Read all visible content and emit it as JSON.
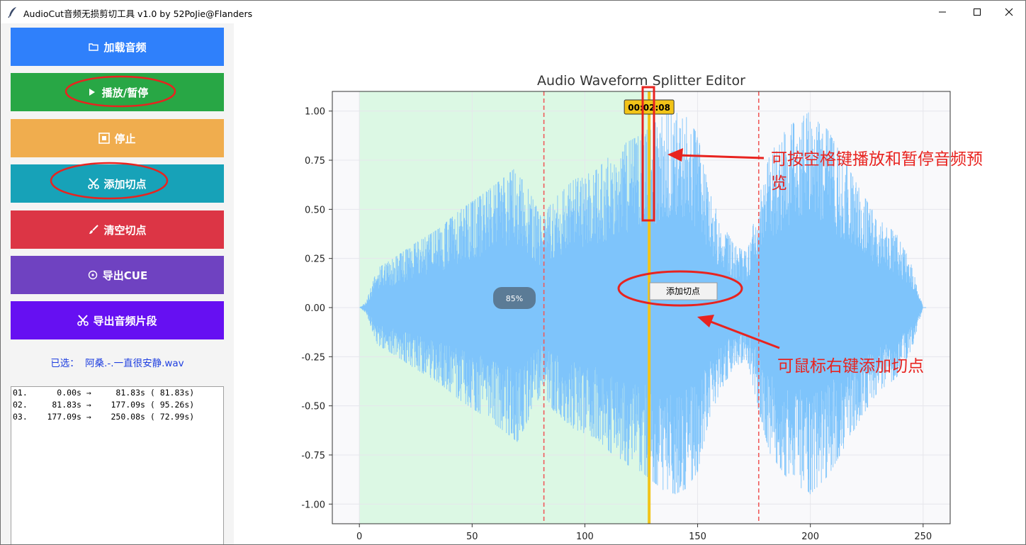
{
  "window": {
    "title": "AudioCut音频无损剪切工具 v1.0 by 52PoJie@Flanders"
  },
  "sidebar": {
    "buttons": [
      {
        "label": "加载音频",
        "icon": "folder-icon",
        "color": "#2f80fb"
      },
      {
        "label": "播放/暂停",
        "icon": "play-icon",
        "color": "#28a745"
      },
      {
        "label": "停止",
        "icon": "stop-icon",
        "color": "#f0ad4e"
      },
      {
        "label": "添加切点",
        "icon": "scissors-icon",
        "color": "#17a2b8"
      },
      {
        "label": "清空切点",
        "icon": "brush-icon",
        "color": "#dc3545"
      },
      {
        "label": "导出CUE",
        "icon": "disc-icon",
        "color": "#6f42c1"
      },
      {
        "label": "导出音频片段",
        "icon": "scissors-icon",
        "color": "#6610f2"
      }
    ],
    "selected_label": "已选：",
    "selected_file": "阿桑.-.一直很安静.wav",
    "segments": [
      "01.      0.00s →     81.83s ( 81.83s)",
      "02.     81.83s →    177.09s ( 95.26s)",
      "03.    177.09s →    250.08s ( 72.99s)"
    ]
  },
  "chart_data": {
    "type": "line",
    "title": "Audio Waveform Splitter Editor",
    "xlim": [
      -12,
      262
    ],
    "ylim": [
      -1.1,
      1.1
    ],
    "xticks": [
      0,
      50,
      100,
      150,
      200,
      250
    ],
    "yticks": [
      1.0,
      0.75,
      0.5,
      0.25,
      0.0,
      -0.25,
      -0.5,
      -0.75,
      -1.0
    ],
    "grid": true,
    "duration": 250.08,
    "cut_points": [
      81.83,
      177.09
    ],
    "selected_segment": [
      0,
      128.5
    ],
    "playhead": 128.5,
    "playhead_label": "00:02:08",
    "waveform_envelope": {
      "x": [
        0,
        3,
        8,
        15,
        25,
        35,
        45,
        55,
        65,
        70,
        75,
        81,
        86,
        95,
        105,
        115,
        125,
        135,
        140,
        145,
        150,
        155,
        160,
        166,
        172,
        177,
        182,
        190,
        200,
        208,
        215,
        222,
        230,
        238,
        245,
        250
      ],
      "y": [
        0.0,
        0.03,
        0.2,
        0.25,
        0.33,
        0.4,
        0.5,
        0.58,
        0.67,
        0.72,
        0.6,
        0.45,
        0.55,
        0.65,
        0.7,
        0.82,
        0.88,
        0.98,
        1.0,
        0.97,
        0.88,
        0.6,
        0.45,
        0.32,
        0.28,
        0.55,
        0.78,
        0.92,
        1.0,
        0.9,
        0.75,
        0.6,
        0.45,
        0.38,
        0.22,
        0.0
      ]
    },
    "overlays": {
      "progress_label": "85%",
      "context_menu_item": "添加切点"
    }
  },
  "annotations": {
    "text1_line1": "可按空格键播放和暂停音频预",
    "text1_line2": "览",
    "text2": "可鼠标右键添加切点",
    "color": "#e8231f"
  }
}
